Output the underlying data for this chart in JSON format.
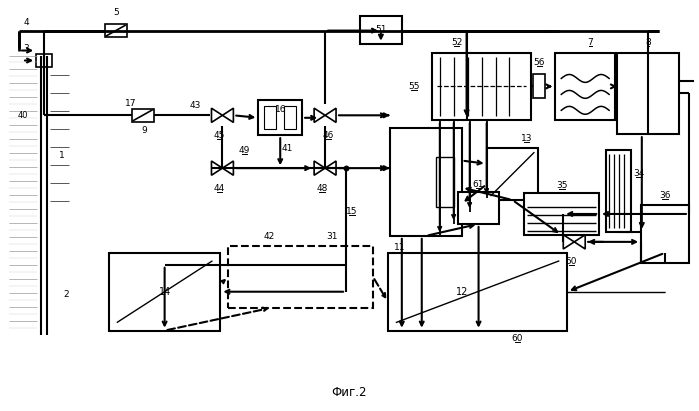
{
  "title": "Фиг.2",
  "bg_color": "#ffffff",
  "fig_width": 6.99,
  "fig_height": 4.11,
  "dpi": 100
}
